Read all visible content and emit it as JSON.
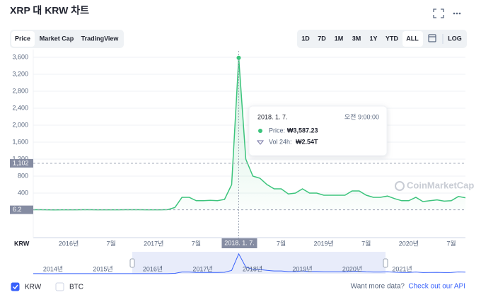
{
  "header": {
    "title": "XRP 대 KRW 차트"
  },
  "tabs": [
    "Price",
    "Market Cap",
    "TradingView"
  ],
  "ranges": [
    "1D",
    "7D",
    "1M",
    "3M",
    "1Y",
    "YTD",
    "ALL",
    "LOG"
  ],
  "watermark": "CoinMarketCap",
  "chart_data": {
    "type": "line",
    "x_axis_label": "KRW",
    "categories": [
      null,
      null,
      null,
      null,
      null,
      "2016년",
      null,
      null,
      null,
      null,
      null,
      "7월",
      null,
      null,
      null,
      null,
      null,
      "2017년",
      null,
      null,
      null,
      null,
      null,
      "7월",
      null,
      null,
      null,
      null,
      null,
      null,
      null,
      null,
      null,
      null,
      null,
      "7월",
      null,
      null,
      null,
      null,
      null,
      "2019년",
      null,
      null,
      null,
      null,
      null,
      "7월",
      null,
      null,
      null,
      null,
      null,
      "2020년",
      null,
      null,
      null,
      null,
      null,
      "7월",
      null,
      null
    ],
    "series": [
      {
        "name": "KRW",
        "color": "#3cc47c",
        "values": [
          8,
          8,
          6,
          5,
          7,
          7,
          7,
          9,
          8,
          7,
          7,
          7,
          7,
          8,
          8,
          8,
          7,
          7,
          7,
          10,
          60,
          300,
          300,
          220,
          220,
          230,
          220,
          250,
          600,
          3587,
          1200,
          800,
          750,
          600,
          500,
          500,
          380,
          400,
          500,
          400,
          400,
          350,
          350,
          350,
          350,
          450,
          450,
          350,
          300,
          300,
          330,
          270,
          220,
          220,
          300,
          200,
          220,
          240,
          210,
          220,
          320,
          290
        ]
      }
    ],
    "ylim": [
      0,
      3700
    ],
    "yticks": [
      400,
      800,
      {
        "value": 1200,
        "label": "1,200"
      },
      {
        "value": 1600,
        "label": "1,600"
      },
      {
        "value": 2000,
        "label": "2,000"
      },
      {
        "value": 2400,
        "label": "2,400"
      },
      {
        "value": 2800,
        "label": "2,800"
      },
      {
        "value": 3200,
        "label": "3,200"
      },
      {
        "value": 3600,
        "label": "3,600"
      }
    ],
    "grid": true,
    "reference_lines": [
      {
        "value": 1102,
        "label": "1,102"
      },
      6.2
    ],
    "tooltip": {
      "index": 29,
      "date": "2018. 1. 7.",
      "time": "오전 9:00:00",
      "price_label": "Price:",
      "price": "₩3,587.23",
      "volume_label": "Vol 24h:",
      "volume": "₩2.54T"
    },
    "navigator_labels": [
      "2014년",
      "2015년",
      "2016년",
      "2017년",
      "2018년",
      "2019년",
      "2020년",
      "2021년"
    ]
  },
  "legend": [
    {
      "name": "KRW",
      "checked": true
    },
    {
      "name": "BTC",
      "checked": false
    }
  ],
  "footer": {
    "question": "Want more data?",
    "link": "Check out our API"
  }
}
